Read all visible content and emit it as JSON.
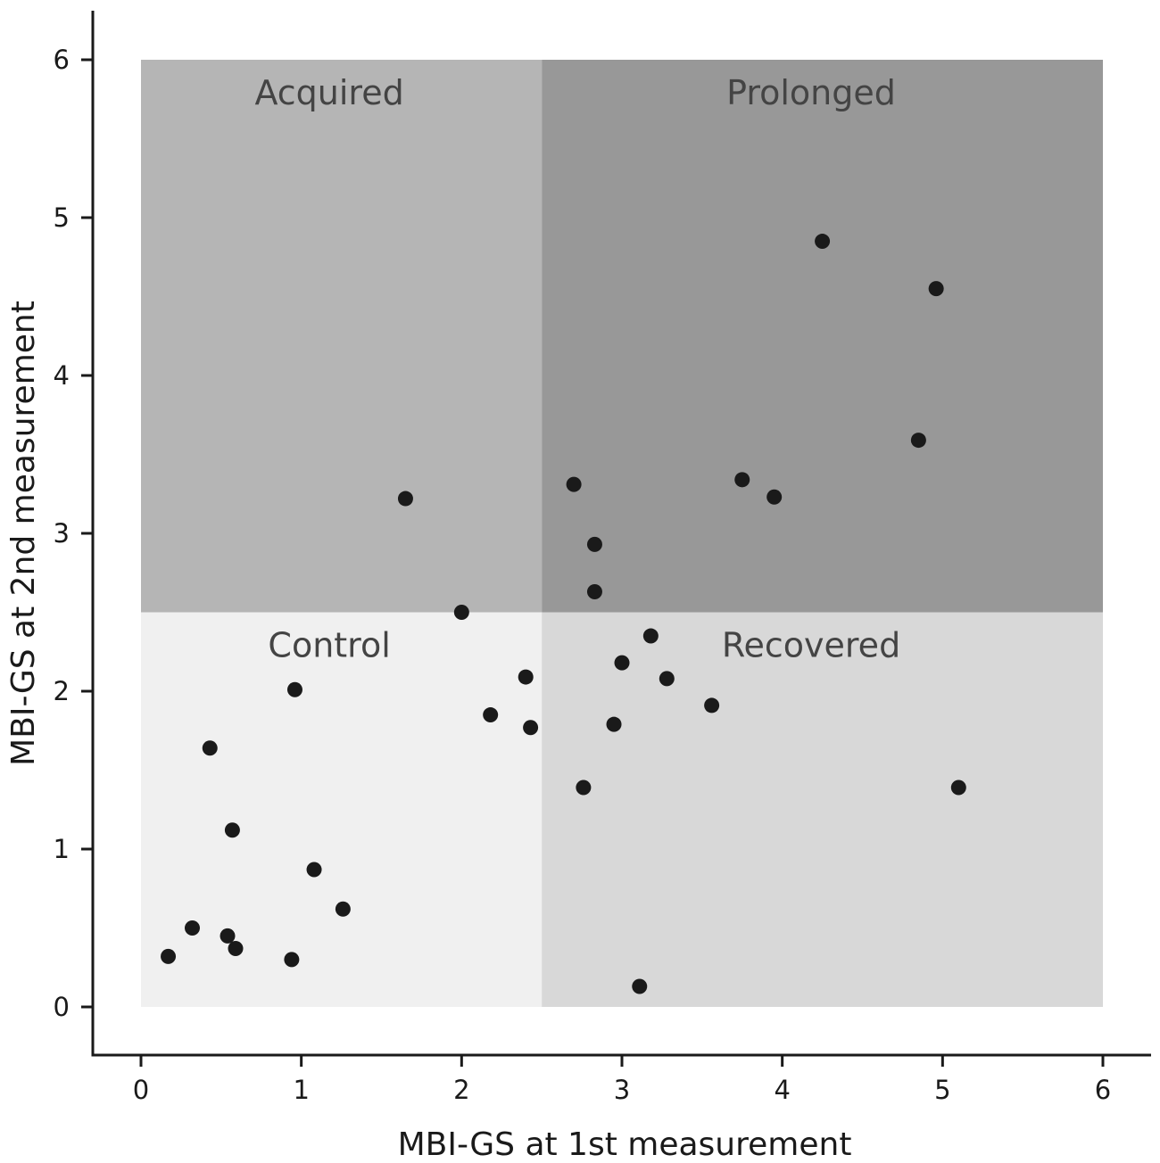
{
  "chart_data": {
    "type": "scatter",
    "title": "",
    "xlabel": "MBI-GS at 1st measurement",
    "ylabel": "MBI-GS at 2nd measurement",
    "xlim": [
      0,
      6
    ],
    "ylim": [
      0,
      6
    ],
    "xticks": [
      0,
      1,
      2,
      3,
      4,
      5,
      6
    ],
    "yticks": [
      0,
      1,
      2,
      3,
      4,
      5,
      6
    ],
    "grid": false,
    "legend": "none",
    "threshold": {
      "x": 2.5,
      "y": 2.5
    },
    "regions": [
      {
        "label": "Acquired",
        "x": [
          0,
          2.5
        ],
        "y": [
          2.5,
          6
        ],
        "color": "#b5b5b5"
      },
      {
        "label": "Prolonged",
        "x": [
          2.5,
          6
        ],
        "y": [
          2.5,
          6
        ],
        "color": "#989898"
      },
      {
        "label": "Control",
        "x": [
          0,
          2.5
        ],
        "y": [
          0,
          2.5
        ],
        "color": "#f0f0f0"
      },
      {
        "label": "Recovered",
        "x": [
          2.5,
          6
        ],
        "y": [
          0,
          2.5
        ],
        "color": "#d8d8d8"
      }
    ],
    "point_color": "#1a1a1a",
    "points": [
      {
        "x": 0.17,
        "y": 0.32
      },
      {
        "x": 0.32,
        "y": 0.5
      },
      {
        "x": 0.54,
        "y": 0.45
      },
      {
        "x": 0.59,
        "y": 0.37
      },
      {
        "x": 0.94,
        "y": 0.3
      },
      {
        "x": 1.26,
        "y": 0.62
      },
      {
        "x": 1.08,
        "y": 0.87
      },
      {
        "x": 0.57,
        "y": 1.12
      },
      {
        "x": 0.43,
        "y": 1.64
      },
      {
        "x": 0.96,
        "y": 2.01
      },
      {
        "x": 1.65,
        "y": 3.22
      },
      {
        "x": 2.0,
        "y": 2.5
      },
      {
        "x": 2.18,
        "y": 1.85
      },
      {
        "x": 2.4,
        "y": 2.09
      },
      {
        "x": 2.43,
        "y": 1.77
      },
      {
        "x": 2.7,
        "y": 3.31
      },
      {
        "x": 2.83,
        "y": 2.93
      },
      {
        "x": 2.83,
        "y": 2.63
      },
      {
        "x": 2.76,
        "y": 1.39
      },
      {
        "x": 2.95,
        "y": 1.79
      },
      {
        "x": 3.0,
        "y": 2.18
      },
      {
        "x": 3.18,
        "y": 2.35
      },
      {
        "x": 3.28,
        "y": 2.08
      },
      {
        "x": 3.11,
        "y": 0.13
      },
      {
        "x": 3.56,
        "y": 1.91
      },
      {
        "x": 3.75,
        "y": 3.34
      },
      {
        "x": 3.95,
        "y": 3.23
      },
      {
        "x": 4.25,
        "y": 4.85
      },
      {
        "x": 4.96,
        "y": 4.55
      },
      {
        "x": 4.85,
        "y": 3.59
      },
      {
        "x": 5.1,
        "y": 1.39
      }
    ]
  }
}
